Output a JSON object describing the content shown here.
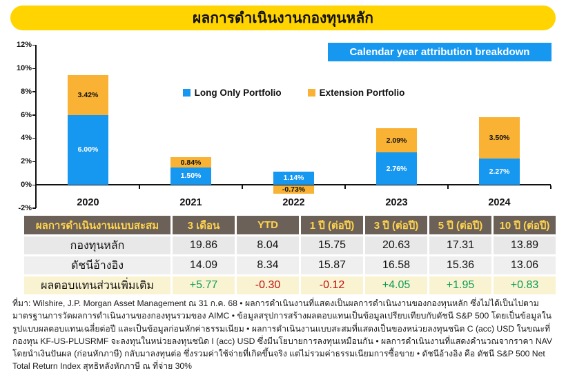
{
  "title": "ผลการดำเนินงานกองทุนหลัก",
  "chart_data": {
    "type": "bar",
    "stacked": true,
    "badge": "Calendar year attribution breakdown",
    "categories": [
      "2020",
      "2021",
      "2022",
      "2023",
      "2024"
    ],
    "series": [
      {
        "name": "Long Only Portfolio",
        "values": [
          6.0,
          1.5,
          1.14,
          2.76,
          2.27
        ]
      },
      {
        "name": "Extension Portfolio",
        "values": [
          3.42,
          0.84,
          -0.73,
          2.09,
          3.5
        ]
      }
    ],
    "labels": [
      [
        "6.00%",
        "1.50%",
        "1.14%",
        "2.76%",
        "2.27%"
      ],
      [
        "3.42%",
        "0.84%",
        "-0.73%",
        "2.09%",
        "3.50%"
      ]
    ],
    "yticks": [
      "12%",
      "10%",
      "8%",
      "6%",
      "4%",
      "2%",
      "0%",
      "-2%"
    ],
    "ylim": [
      -2,
      12
    ],
    "grid": false,
    "legend_position": "center"
  },
  "table": {
    "header": [
      "ผลการดำเนินงานแบบสะสม",
      "3 เดือน",
      "YTD",
      "1 ปี (ต่อปี)",
      "3 ปี (ต่อปี)",
      "5 ปี (ต่อปี)",
      "10 ปี (ต่อปี)"
    ],
    "rows": [
      {
        "label": "กองทุนหลัก",
        "values": [
          "19.86",
          "8.04",
          "15.75",
          "20.63",
          "17.31",
          "13.89"
        ]
      },
      {
        "label": "ดัชนีอ้างอิง",
        "values": [
          "14.09",
          "8.34",
          "15.87",
          "16.58",
          "15.36",
          "13.06"
        ]
      },
      {
        "label": "ผลตอบแทนส่วนเพิ่มเติม",
        "values": [
          "+5.77",
          "-0.30",
          "-0.12",
          "+4.05",
          "+1.95",
          "+0.83"
        ]
      }
    ]
  },
  "footnote": "ที่มา: Wilshire, J.P. Morgan Asset Management ณ 31 ก.ค. 68 • ผลการดำเนินงานที่แสดงเป็นผลการดำเนินงานของกองทุนหลัก ซึ่งไม่ได้เป็นไปตามมาตรฐานการวัดผลการดำเนินงานของกองทุนรวมของ AIMC • ข้อมูลสรุปการสร้างผลตอบแทนเป็นข้อมูลเปรียบเทียบกับดัชนี S&P 500 โดยเป็นข้อมูลในรูปแบบผลตอบแทนเฉลี่ยต่อปี และเป็นข้อมูลก่อนหักค่าธรรมเนียม • ผลการดำเนินงานแบบสะสมที่แสดงเป็นของหน่วยลงทุนชนิด C (acc) USD ในขณะที่กองทุน KF-US-PLUSRMF จะลงทุนในหน่วยลงทุนชนิด I (acc) USD ซึ่งมีนโยบายการลงทุนเหมือนกัน • ผลการดำเนินงานที่แสดงคำนวณจากราคา NAV โดยนำเงินปันผล (ก่อนหักภาษี) กลับมาลงทุนต่อ ซึ่งรวมค่าใช้จ่ายที่เกิดขึ้นจริง แต่ไม่รวมค่าธรรมเนียมการซื้อขาย • ดัชนีอ้างอิง คือ ดัชนี S&P 500 Net Total Return Index สุทธิหลังหักภาษี ณ ที่จ่าย 30%",
  "colors": {
    "banner_yellow": "#FFD400",
    "bar_blue": "#1697F0",
    "bar_orange": "#F9B233",
    "badge_blue": "#1697F0",
    "table_header_bg": "#6C6158",
    "table_header_text": "#FFD34D",
    "row_gray_1": "#E8E8E8",
    "row_gray_2": "#EFEFEF",
    "row_yellow": "#FAF3D2",
    "positive_green": "#0A9B58",
    "negative_red": "#C01010"
  }
}
